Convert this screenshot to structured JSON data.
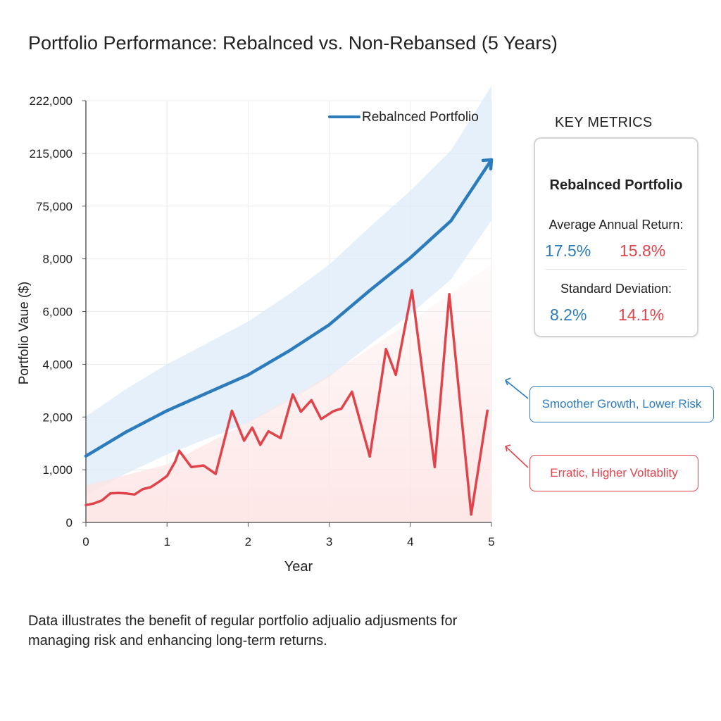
{
  "title": "Portfolio Performance: Rebalnced vs. Non-Rebansed (5 Years)",
  "chart_data": {
    "type": "line",
    "xlabel": "Year",
    "ylabel": "Portfolio Vaue ($)",
    "x_ticks": [
      "0",
      "1",
      "2",
      "3",
      "4",
      "5"
    ],
    "y_ticks": [
      "0",
      "1,000",
      "2,000",
      "4,000",
      "6,000",
      "8,000",
      "75,000",
      "215,000",
      "222,000"
    ],
    "xlim": [
      0,
      5
    ],
    "legend": {
      "label": "Rebalnced Portfolio",
      "position": "top-right"
    },
    "grid": true,
    "series": [
      {
        "name": "Rebalnced Portfolio",
        "color": "#2b7bbd",
        "points": [
          [
            0,
            1.26
          ],
          [
            0.5,
            1.72
          ],
          [
            1,
            2.12
          ],
          [
            1.5,
            2.46
          ],
          [
            2,
            2.8
          ],
          [
            2.5,
            3.25
          ],
          [
            3,
            3.75
          ],
          [
            3.5,
            4.4
          ],
          [
            4,
            5.02
          ],
          [
            4.5,
            5.72
          ],
          [
            5,
            6.88
          ]
        ]
      },
      {
        "color": "#e0434a",
        "points": [
          [
            0,
            0.33
          ],
          [
            0.1,
            0.36
          ],
          [
            0.2,
            0.42
          ],
          [
            0.3,
            0.55
          ],
          [
            0.4,
            0.56
          ],
          [
            0.5,
            0.55
          ],
          [
            0.6,
            0.53
          ],
          [
            0.7,
            0.63
          ],
          [
            0.8,
            0.67
          ],
          [
            0.9,
            0.77
          ],
          [
            1,
            0.88
          ],
          [
            1.1,
            1.15
          ],
          [
            1.15,
            1.36
          ],
          [
            1.3,
            1.05
          ],
          [
            1.45,
            1.08
          ],
          [
            1.6,
            0.92
          ],
          [
            1.8,
            2.12
          ],
          [
            1.95,
            1.55
          ],
          [
            2.05,
            1.8
          ],
          [
            2.15,
            1.47
          ],
          [
            2.25,
            1.73
          ],
          [
            2.4,
            1.6
          ],
          [
            2.55,
            2.43
          ],
          [
            2.65,
            2.1
          ],
          [
            2.78,
            2.32
          ],
          [
            2.9,
            1.96
          ],
          [
            3.05,
            2.11
          ],
          [
            3.15,
            2.16
          ],
          [
            3.28,
            2.48
          ],
          [
            3.5,
            1.25
          ],
          [
            3.7,
            3.29
          ],
          [
            3.82,
            2.8
          ],
          [
            4.02,
            4.4
          ],
          [
            4.3,
            1.05
          ],
          [
            4.48,
            4.33
          ],
          [
            4.75,
            0.15
          ],
          [
            4.95,
            2.12
          ]
        ]
      }
    ]
  },
  "metrics": {
    "heading": "KEY METRICS",
    "card_title": "Rebalnced Portfolio",
    "return_label": "Average Annual Return:",
    "return_rebalanced": "17.5%",
    "return_non_rebalanced": "15.8%",
    "stddev_label": "Standard Deviation:",
    "stddev_rebalanced": "8.2%",
    "stddev_non_rebalanced": "14.1%"
  },
  "callouts": {
    "smooth": "Smoother Growth, Lower Risk",
    "erratic": "Erratic, Higher Voltablity"
  },
  "footnote": "Data illustrates the benefit of regular portfolio adjualio adjusments for managing risk and enhancing long-term returns.",
  "colors": {
    "rebalanced": "#2b7bbd",
    "non_rebalanced": "#e0434a"
  }
}
